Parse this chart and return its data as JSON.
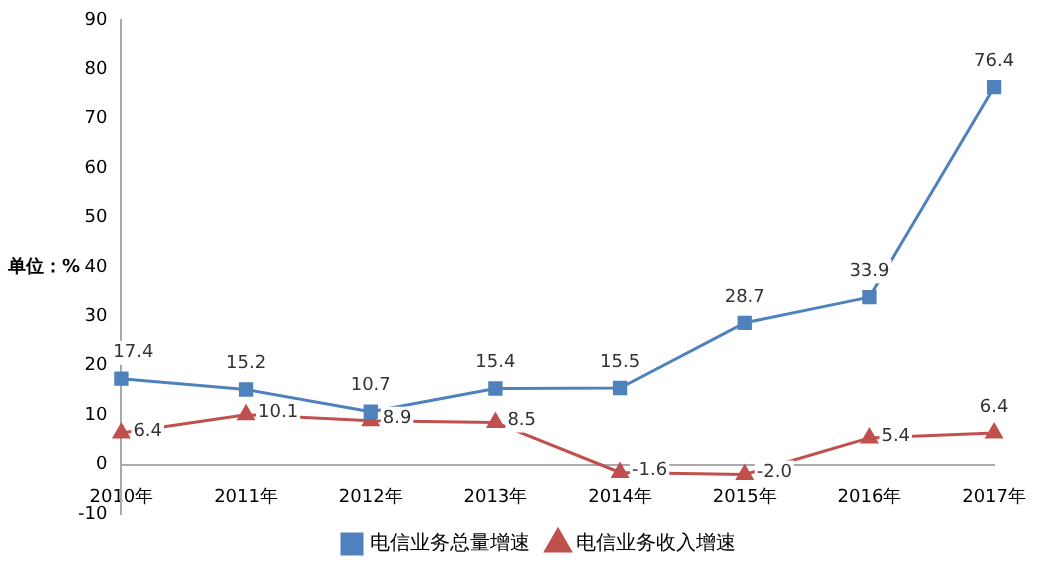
{
  "chart_data": {
    "type": "line",
    "ylabel": "单位：%",
    "categories": [
      "2010年",
      "2011年",
      "2012年",
      "2013年",
      "2014年",
      "2015年",
      "2016年",
      "2017年"
    ],
    "series": [
      {
        "name": "电信业务总量增速",
        "color": "#4f81bd",
        "marker": "square",
        "values": [
          17.4,
          15.2,
          10.7,
          15.4,
          15.5,
          28.7,
          33.9,
          76.4
        ],
        "value_labels": [
          "17.4",
          "15.2",
          "10.7",
          "15.4",
          "15.5",
          "28.7",
          "33.9",
          "76.4"
        ]
      },
      {
        "name": "电信业务收入增速",
        "color": "#c0504d",
        "marker": "triangle",
        "values": [
          6.4,
          10.1,
          8.9,
          8.5,
          -1.6,
          -2.0,
          5.4,
          6.4
        ],
        "value_labels": [
          "6.4",
          "10.1",
          "8.9",
          "8.5",
          "-1.6",
          "-2.0",
          "5.4",
          "6.4"
        ]
      }
    ],
    "ylim": [
      -10,
      90
    ],
    "yticks": [
      -10,
      0,
      10,
      20,
      30,
      40,
      50,
      60,
      70,
      80,
      90
    ],
    "legend": "bottom"
  }
}
